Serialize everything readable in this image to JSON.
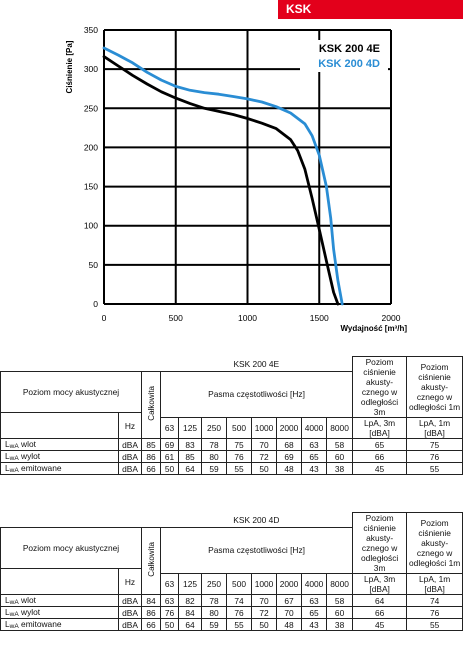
{
  "badge": "KSK",
  "chart_data": {
    "type": "line",
    "ylabel": "Ciśnienie [Pa]",
    "xlabel": "Wydajność [m³/h]",
    "xlim": [
      0,
      2000
    ],
    "ylim": [
      0,
      350
    ],
    "x_ticks": [
      "0",
      "500",
      "1000",
      "1500",
      "2000"
    ],
    "y_ticks": [
      "0",
      "50",
      "100",
      "150",
      "200",
      "250",
      "300",
      "350"
    ],
    "grid": true,
    "legend_position": "top-right",
    "series": [
      {
        "name": "KSK 200 4E",
        "color": "#000000",
        "x": [
          0,
          100,
          200,
          300,
          400,
          500,
          600,
          700,
          800,
          900,
          1000,
          1100,
          1200,
          1300,
          1350,
          1400,
          1450,
          1500,
          1550,
          1600,
          1630
        ],
        "y": [
          316,
          304,
          292,
          281,
          271,
          263,
          256,
          250,
          246,
          242,
          237,
          231,
          224,
          210,
          196,
          172,
          135,
          95,
          55,
          15,
          0
        ]
      },
      {
        "name": "KSK 200 4D",
        "color": "#2a8dd4",
        "x": [
          0,
          100,
          200,
          300,
          400,
          500,
          600,
          700,
          800,
          900,
          1000,
          1100,
          1200,
          1300,
          1400,
          1450,
          1500,
          1550,
          1580,
          1600,
          1630,
          1660
        ],
        "y": [
          327,
          318,
          308,
          296,
          286,
          278,
          273,
          270,
          268,
          265,
          262,
          258,
          252,
          244,
          230,
          215,
          190,
          150,
          110,
          70,
          30,
          0
        ]
      }
    ]
  },
  "tables": [
    {
      "title": "KSK 200 4E",
      "row_header": "Poziom mocy akustycznej",
      "calk": "Całkowita",
      "bands_label": "Pasma częstotliwości [Hz]",
      "hz": "Hz",
      "freqs": [
        "63",
        "125",
        "250",
        "500",
        "1000",
        "2000",
        "4000",
        "8000"
      ],
      "p3_title": "Poziom ciśnienie akusty- cznego w odległości 3m",
      "p1_title": "Poziom ciśnienie akusty- cznego w odległości 1m",
      "p3_unit": "LpA, 3m [dBA]",
      "p1_unit": "LpA, 1m [dBA]",
      "rows": [
        {
          "label": "wlot",
          "unit": "dBA",
          "total": "85",
          "bands": [
            "69",
            "83",
            "78",
            "75",
            "70",
            "68",
            "63",
            "58"
          ],
          "p3": "65",
          "p1": "75"
        },
        {
          "label": "wylot",
          "unit": "dBA",
          "total": "86",
          "bands": [
            "61",
            "85",
            "80",
            "76",
            "72",
            "69",
            "65",
            "60"
          ],
          "p3": "66",
          "p1": "76"
        },
        {
          "label": "emitowane",
          "unit": "dBA",
          "total": "66",
          "bands": [
            "50",
            "64",
            "59",
            "55",
            "50",
            "48",
            "43",
            "38"
          ],
          "p3": "45",
          "p1": "55"
        }
      ]
    },
    {
      "title": "KSK 200 4D",
      "row_header": "Poziom mocy akustycznej",
      "calk": "Całkowita",
      "bands_label": "Pasma częstotliwości [Hz]",
      "hz": "Hz",
      "freqs": [
        "63",
        "125",
        "250",
        "500",
        "1000",
        "2000",
        "4000",
        "8000"
      ],
      "p3_title": "Poziom ciśnienie akusty- cznego w odległości 3m",
      "p1_title": "Poziom ciśnienie akusty- cznego w odległości 1m",
      "p3_unit": "LpA, 3m [dBA]",
      "p1_unit": "LpA, 1m [dBA]",
      "rows": [
        {
          "label": "wlot",
          "unit": "dBA",
          "total": "84",
          "bands": [
            "63",
            "82",
            "78",
            "74",
            "70",
            "67",
            "63",
            "58"
          ],
          "p3": "64",
          "p1": "74"
        },
        {
          "label": "wylot",
          "unit": "dBA",
          "total": "86",
          "bands": [
            "76",
            "84",
            "80",
            "76",
            "72",
            "70",
            "65",
            "60"
          ],
          "p3": "66",
          "p1": "76"
        },
        {
          "label": "emitowane",
          "unit": "dBA",
          "total": "66",
          "bands": [
            "50",
            "64",
            "59",
            "55",
            "50",
            "48",
            "43",
            "38"
          ],
          "p3": "45",
          "p1": "55"
        }
      ]
    }
  ]
}
